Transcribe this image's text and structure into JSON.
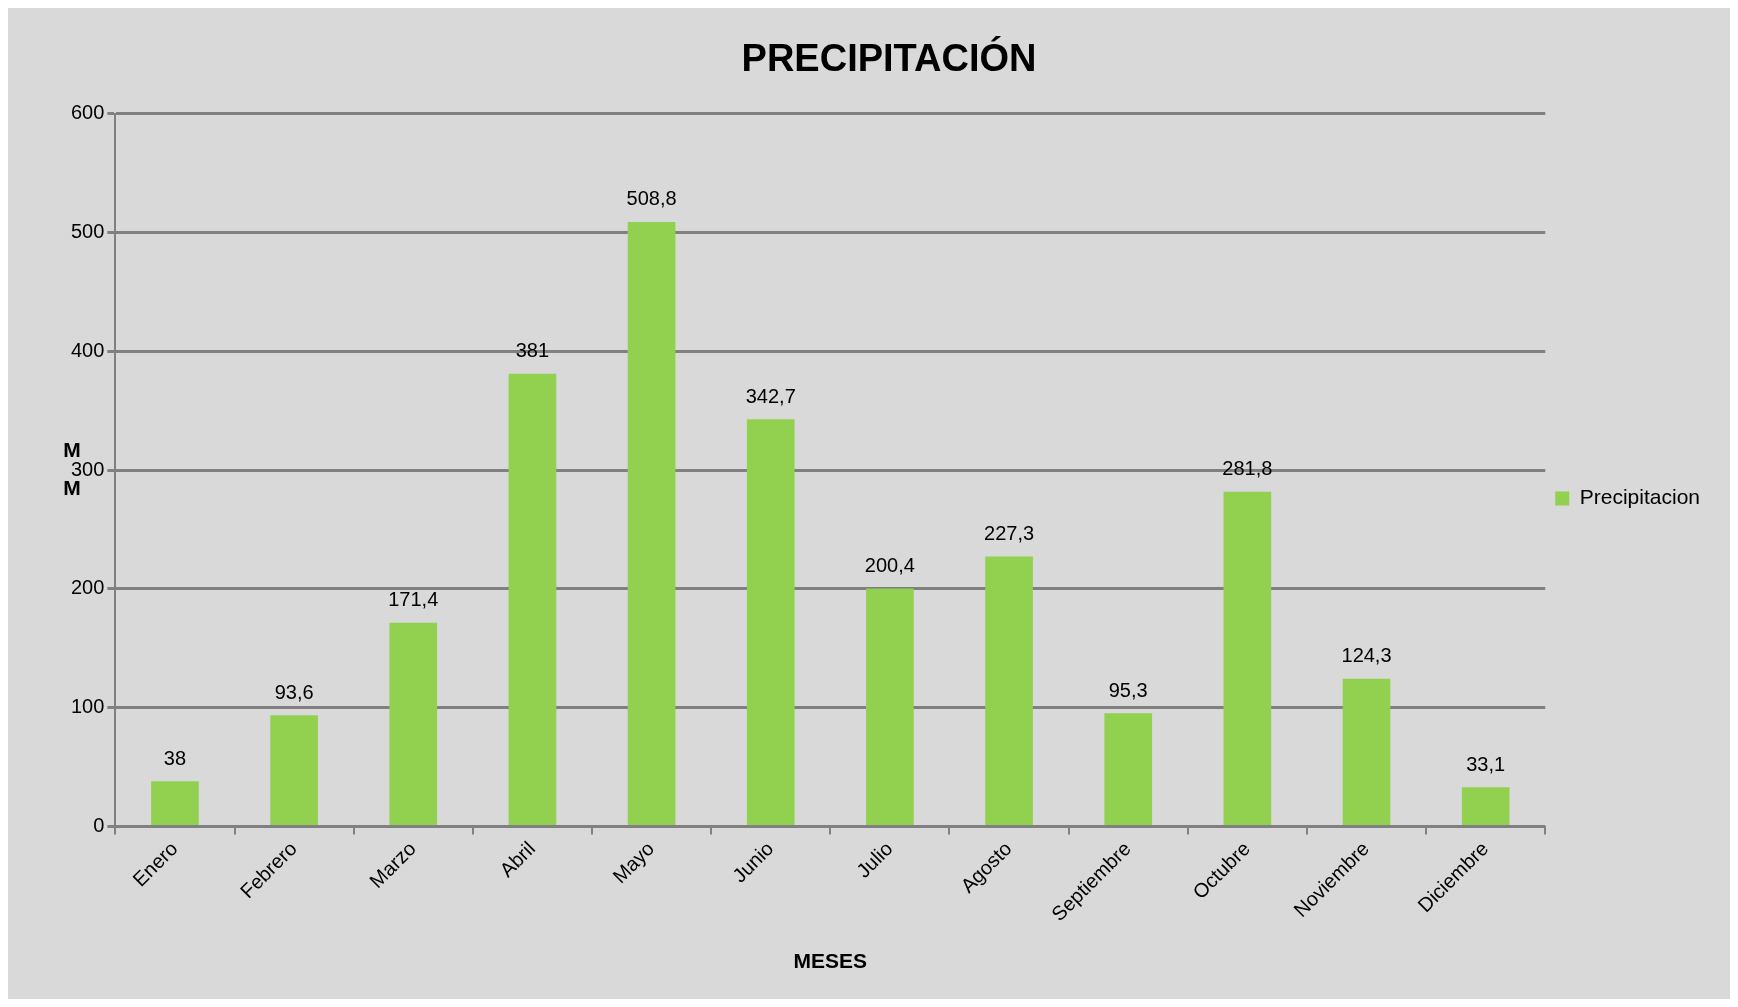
{
  "chart_data": {
    "type": "bar",
    "title": "PRECIPITACIÓN",
    "xlabel": "MESES",
    "ylabel": "MM",
    "categories": [
      "Enero",
      "Febrero",
      "Marzo",
      "Abril",
      "Mayo",
      "Junio",
      "Julio",
      "Agosto",
      "Septiembre",
      "Octubre",
      "Noviembre",
      "Diciembre"
    ],
    "series": [
      {
        "name": "Precipitacion",
        "color": "#92d050",
        "values": [
          38,
          93.6,
          171.4,
          381,
          508.8,
          342.7,
          200.4,
          227.3,
          95.3,
          281.8,
          124.3,
          33.1
        ],
        "value_labels": [
          "38",
          "93,6",
          "171,4",
          "381",
          "508,8",
          "342,7",
          "200,4",
          "227,3",
          "95,3",
          "281,8",
          "124,3",
          "33,1"
        ]
      }
    ],
    "ylim": [
      0,
      600
    ],
    "yticks": [
      0,
      100,
      200,
      300,
      400,
      500,
      600
    ],
    "grid": "y",
    "legend": "right"
  }
}
